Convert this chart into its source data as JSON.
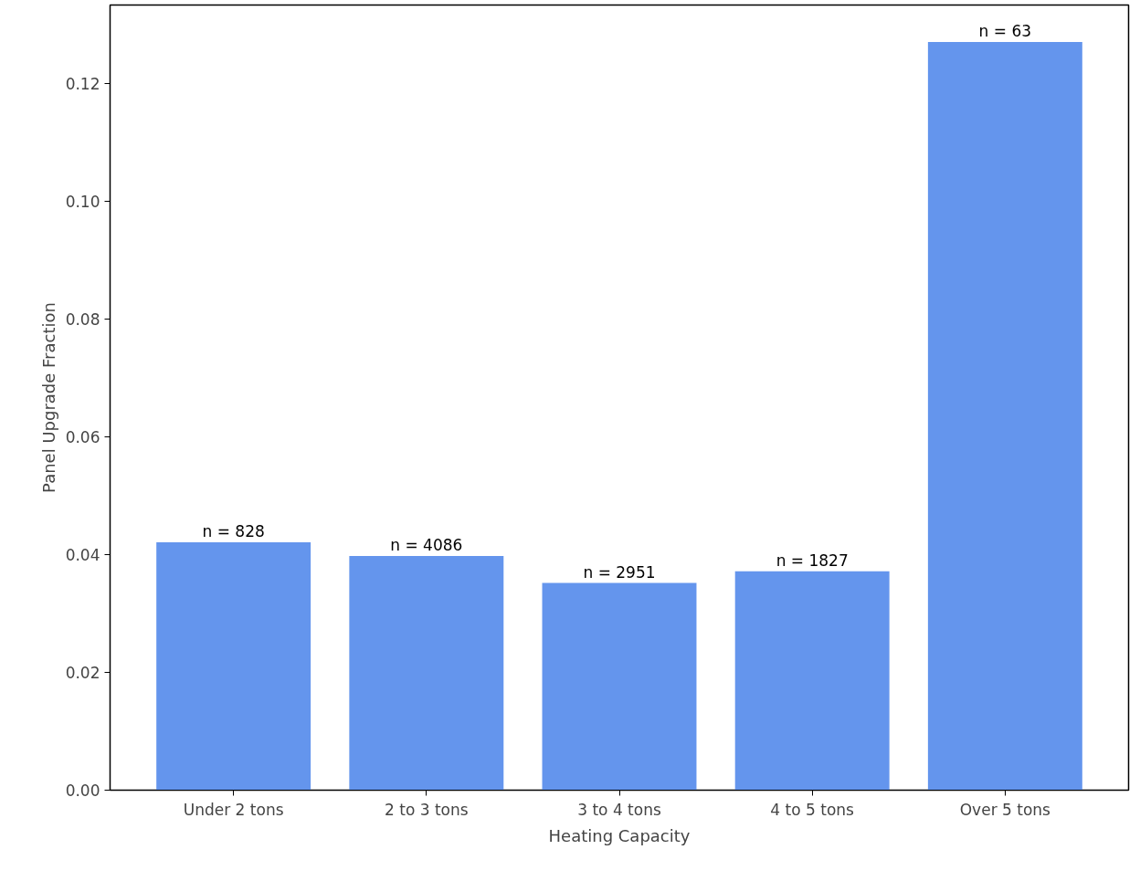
{
  "chart_data": {
    "type": "bar",
    "xlabel": "Heating Capacity",
    "ylabel": "Panel Upgrade Fraction",
    "categories": [
      "Under 2 tons",
      "2 to 3 tons",
      "3 to 4 tons",
      "4 to 5 tons",
      "Over 5 tons"
    ],
    "values": [
      0.0421,
      0.0398,
      0.0352,
      0.0372,
      0.1271
    ],
    "annotations": [
      {
        "text": "n = 828",
        "x": "Under 2 tons",
        "y": 0.0421
      },
      {
        "text": "n = 4086",
        "x": "2 to 3 tons",
        "y": 0.0398
      },
      {
        "text": "n = 2951",
        "x": "3 to 4 tons",
        "y": 0.0352
      },
      {
        "text": "n = 1827",
        "x": "4 to 5 tons",
        "y": 0.0372
      },
      {
        "text": "n = 63",
        "x": "Over 5 tons",
        "y": 0.1271
      }
    ],
    "color": "#6495ed",
    "ylim": [
      0,
      0.1334
    ],
    "yticks": [
      {
        "value": 0,
        "label": "0.00"
      },
      {
        "value": 0.02,
        "label": "0.02"
      },
      {
        "value": 0.04,
        "label": "0.04"
      },
      {
        "value": 0.06,
        "label": "0.06"
      },
      {
        "value": 0.08,
        "label": "0.08"
      },
      {
        "value": 0.1,
        "label": "0.10"
      },
      {
        "value": 0.12,
        "label": "0.12"
      }
    ],
    "grid": false
  }
}
